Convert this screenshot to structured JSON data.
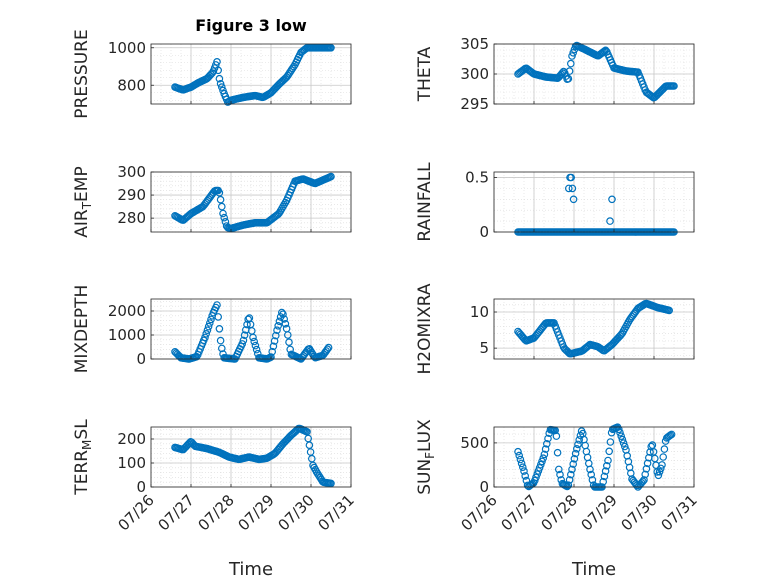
{
  "title": "Figure 3 low",
  "x_axis_title": "Time",
  "colors": {
    "marker": "#0072BD",
    "axis": "#262626",
    "grid": "#DADADA"
  },
  "chart_data": [
    {
      "type": "scatter",
      "ylabel": "PRESSURE",
      "xlim": [
        "07/26",
        "07/31"
      ],
      "ylim": [
        700,
        1020
      ],
      "yticks": [
        800,
        1000
      ],
      "x_ticks": [
        "07/26",
        "07/27",
        "07/28",
        "07/29",
        "07/30",
        "07/31"
      ],
      "grid": true,
      "keyframes": [
        [
          26.6,
          790
        ],
        [
          26.8,
          775
        ],
        [
          27.0,
          790
        ],
        [
          27.2,
          815
        ],
        [
          27.4,
          835
        ],
        [
          27.55,
          870
        ],
        [
          27.65,
          925
        ],
        [
          27.72,
          820
        ],
        [
          27.82,
          760
        ],
        [
          27.92,
          710
        ],
        [
          28.0,
          720
        ],
        [
          28.3,
          735
        ],
        [
          28.6,
          745
        ],
        [
          28.8,
          735
        ],
        [
          29.0,
          760
        ],
        [
          29.2,
          805
        ],
        [
          29.4,
          845
        ],
        [
          29.6,
          910
        ],
        [
          29.75,
          975
        ],
        [
          29.9,
          1000
        ],
        [
          30.5,
          1000
        ]
      ]
    },
    {
      "type": "scatter",
      "ylabel": "THETA",
      "xlim": [
        "07/26",
        "07/31"
      ],
      "ylim": [
        295,
        305
      ],
      "yticks": [
        295,
        300,
        305
      ],
      "x_ticks": [
        "07/26",
        "07/27",
        "07/28",
        "07/29",
        "07/30",
        "07/31"
      ],
      "grid": true,
      "keyframes": [
        [
          26.6,
          300
        ],
        [
          26.8,
          301
        ],
        [
          27.0,
          300
        ],
        [
          27.3,
          299.5
        ],
        [
          27.6,
          299.3
        ],
        [
          27.75,
          300.5
        ],
        [
          27.85,
          298.8
        ],
        [
          27.95,
          303
        ],
        [
          28.05,
          304.8
        ],
        [
          28.3,
          304
        ],
        [
          28.6,
          303
        ],
        [
          28.8,
          304
        ],
        [
          29.0,
          301
        ],
        [
          29.3,
          300.5
        ],
        [
          29.6,
          300.3
        ],
        [
          29.8,
          297
        ],
        [
          30.0,
          296
        ],
        [
          30.3,
          298
        ],
        [
          30.5,
          298
        ]
      ]
    },
    {
      "type": "scatter",
      "ylabel": "AIR_TEMP",
      "xlim": [
        "07/26",
        "07/31"
      ],
      "ylim": [
        274,
        300
      ],
      "yticks": [
        280,
        290,
        300
      ],
      "x_ticks": [
        "07/26",
        "07/27",
        "07/28",
        "07/29",
        "07/30",
        "07/31"
      ],
      "grid": true,
      "keyframes": [
        [
          26.6,
          281
        ],
        [
          26.8,
          279
        ],
        [
          27.0,
          282
        ],
        [
          27.3,
          285
        ],
        [
          27.6,
          292
        ],
        [
          27.7,
          292
        ],
        [
          27.8,
          282
        ],
        [
          27.9,
          276
        ],
        [
          28.0,
          275.5
        ],
        [
          28.3,
          277
        ],
        [
          28.6,
          278
        ],
        [
          28.9,
          278
        ],
        [
          29.2,
          282
        ],
        [
          29.4,
          288
        ],
        [
          29.6,
          296
        ],
        [
          29.8,
          297
        ],
        [
          30.1,
          295
        ],
        [
          30.5,
          298
        ]
      ]
    },
    {
      "type": "scatter",
      "ylabel": "RAINFALL",
      "xlim": [
        "07/26",
        "07/31"
      ],
      "ylim": [
        0,
        0.55
      ],
      "yticks": [
        0,
        0.5
      ],
      "x_ticks": [
        "07/26",
        "07/27",
        "07/28",
        "07/29",
        "07/30",
        "07/31"
      ],
      "grid": true,
      "baseline_range": [
        26.6,
        30.5
      ],
      "extra_points": [
        [
          27.87,
          0.4
        ],
        [
          27.9,
          0.5
        ],
        [
          27.93,
          0.5
        ],
        [
          27.96,
          0.4
        ],
        [
          27.99,
          0.3
        ],
        [
          28.9,
          0.1
        ],
        [
          28.95,
          0.3
        ]
      ]
    },
    {
      "type": "scatter",
      "ylabel": "MIXDEPTH",
      "xlim": [
        "07/26",
        "07/31"
      ],
      "ylim": [
        0,
        2500
      ],
      "yticks": [
        0,
        1000,
        2000
      ],
      "x_ticks": [
        "07/26",
        "07/27",
        "07/28",
        "07/29",
        "07/30",
        "07/31"
      ],
      "grid": true,
      "keyframes": [
        [
          26.6,
          300
        ],
        [
          26.75,
          50
        ],
        [
          26.95,
          0
        ],
        [
          27.15,
          100
        ],
        [
          27.35,
          900
        ],
        [
          27.55,
          1900
        ],
        [
          27.65,
          2250
        ],
        [
          27.75,
          600
        ],
        [
          27.82,
          50
        ],
        [
          28.1,
          0
        ],
        [
          28.3,
          700
        ],
        [
          28.45,
          1800
        ],
        [
          28.55,
          900
        ],
        [
          28.7,
          50
        ],
        [
          28.9,
          0
        ],
        [
          29.0,
          80
        ],
        [
          29.15,
          1200
        ],
        [
          29.28,
          2000
        ],
        [
          29.4,
          1200
        ],
        [
          29.5,
          200
        ],
        [
          29.75,
          0
        ],
        [
          29.95,
          450
        ],
        [
          30.1,
          50
        ],
        [
          30.3,
          150
        ],
        [
          30.45,
          500
        ]
      ]
    },
    {
      "type": "scatter",
      "ylabel": "H2OMIXRA",
      "xlim": [
        "07/26",
        "07/31"
      ],
      "ylim": [
        3.5,
        11.8
      ],
      "yticks": [
        5,
        10
      ],
      "x_ticks": [
        "07/26",
        "07/27",
        "07/28",
        "07/29",
        "07/30",
        "07/31"
      ],
      "grid": true,
      "keyframes": [
        [
          26.6,
          7.3
        ],
        [
          26.8,
          6.0
        ],
        [
          27.0,
          6.4
        ],
        [
          27.3,
          8.5
        ],
        [
          27.5,
          8.5
        ],
        [
          27.75,
          5.0
        ],
        [
          27.9,
          4.2
        ],
        [
          28.2,
          4.6
        ],
        [
          28.4,
          5.5
        ],
        [
          28.6,
          5.2
        ],
        [
          28.75,
          4.6
        ],
        [
          28.95,
          5.5
        ],
        [
          29.2,
          7.0
        ],
        [
          29.4,
          9.0
        ],
        [
          29.6,
          10.5
        ],
        [
          29.8,
          11.2
        ],
        [
          30.1,
          10.6
        ],
        [
          30.4,
          10.2
        ]
      ]
    },
    {
      "type": "scatter",
      "ylabel": "TERR_MSL",
      "xlim": [
        "07/26",
        "07/31"
      ],
      "ylim": [
        0,
        250
      ],
      "yticks": [
        0,
        100,
        200
      ],
      "x_ticks": [
        "07/26",
        "07/27",
        "07/28",
        "07/29",
        "07/30",
        "07/31"
      ],
      "grid": true,
      "keyframes": [
        [
          26.6,
          165
        ],
        [
          26.8,
          155
        ],
        [
          27.0,
          190
        ],
        [
          27.1,
          170
        ],
        [
          27.4,
          160
        ],
        [
          27.7,
          145
        ],
        [
          27.95,
          125
        ],
        [
          28.2,
          115
        ],
        [
          28.45,
          125
        ],
        [
          28.7,
          115
        ],
        [
          28.9,
          120
        ],
        [
          29.1,
          140
        ],
        [
          29.3,
          180
        ],
        [
          29.5,
          215
        ],
        [
          29.7,
          245
        ],
        [
          29.9,
          230
        ],
        [
          30.05,
          90
        ],
        [
          30.15,
          60
        ],
        [
          30.3,
          20
        ],
        [
          30.5,
          15
        ]
      ]
    },
    {
      "type": "scatter",
      "ylabel": "SUN_FLUX",
      "xlim": [
        "07/26",
        "07/31"
      ],
      "ylim": [
        0,
        680
      ],
      "yticks": [
        0,
        500
      ],
      "x_ticks": [
        "07/26",
        "07/27",
        "07/28",
        "07/29",
        "07/30",
        "07/31"
      ],
      "grid": true,
      "keyframes": [
        [
          26.6,
          400
        ],
        [
          26.75,
          180
        ],
        [
          26.85,
          0
        ],
        [
          27.0,
          50
        ],
        [
          27.25,
          350
        ],
        [
          27.4,
          650
        ],
        [
          27.55,
          640
        ],
        [
          27.62,
          200
        ],
        [
          27.7,
          40
        ],
        [
          27.85,
          0
        ],
        [
          28.05,
          400
        ],
        [
          28.2,
          650
        ],
        [
          28.4,
          200
        ],
        [
          28.5,
          0
        ],
        [
          28.7,
          0
        ],
        [
          28.85,
          300
        ],
        [
          28.95,
          650
        ],
        [
          29.1,
          680
        ],
        [
          29.3,
          420
        ],
        [
          29.45,
          90
        ],
        [
          29.6,
          0
        ],
        [
          29.75,
          80
        ],
        [
          29.95,
          500
        ],
        [
          30.1,
          120
        ],
        [
          30.2,
          250
        ],
        [
          30.3,
          550
        ],
        [
          30.45,
          600
        ]
      ]
    }
  ]
}
